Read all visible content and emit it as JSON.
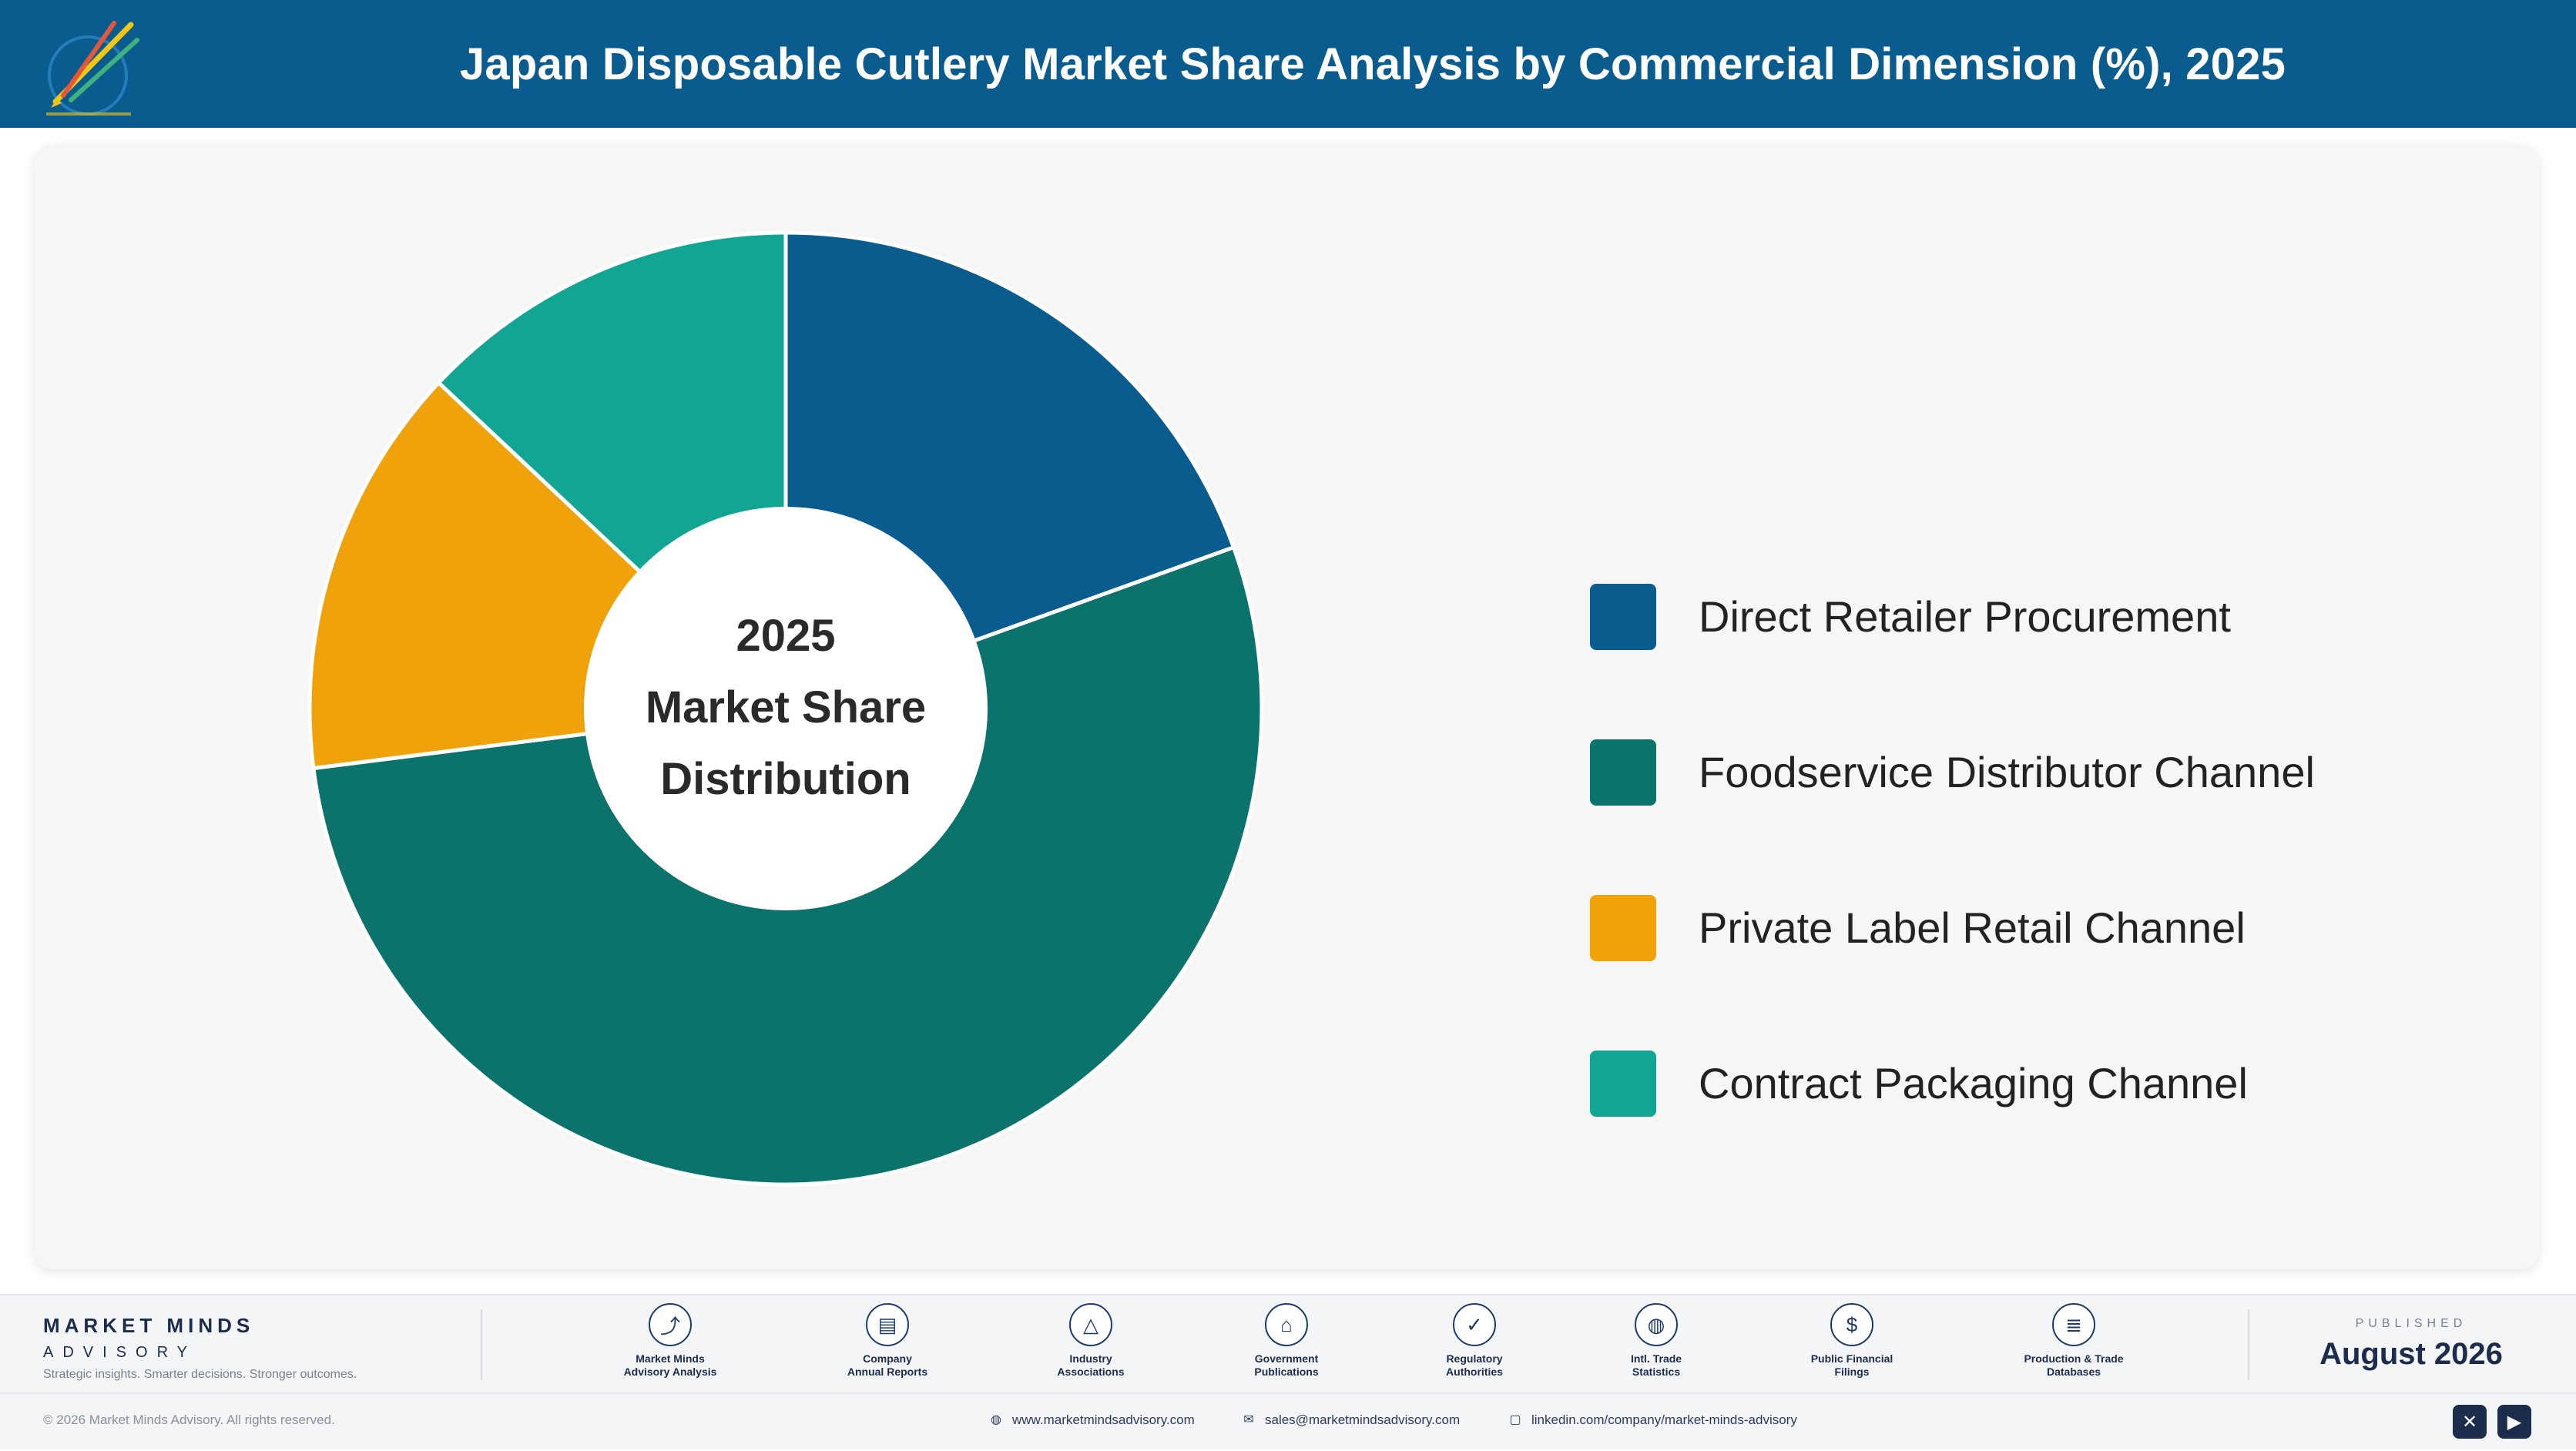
{
  "header": {
    "title": "Japan Disposable Cutlery Market Share Analysis by Commercial Dimension (%), 2025",
    "logo_icon": "market-minds-logo"
  },
  "chart_data": {
    "type": "pie",
    "title": "Japan Disposable Cutlery Market Share Analysis by Commercial Dimension (%), 2025",
    "center_label": [
      "2025",
      "Market Share",
      "Distribution"
    ],
    "categories": [
      "Direct Retailer Procurement",
      "Foodservice Distributor Channel",
      "Private Label Retail Channel",
      "Contract Packaging Channel"
    ],
    "values": [
      19.5,
      53.5,
      14.0,
      13.0
    ],
    "unit": "%",
    "colors": [
      "#0a5c8e",
      "#0c736c",
      "#f0a20a",
      "#12a594"
    ],
    "donut": true,
    "start_angle": "top",
    "direction": "clockwise",
    "legend_position": "right"
  },
  "footer": {
    "brand_name": "MARKET MINDS",
    "brand_sub": "ADVISORY",
    "brand_tag": "Strategic insights. Smarter decisions. Stronger outcomes.",
    "sources": [
      {
        "label": "Market Minds\nAdvisory Analysis",
        "icon": "trend-chart-icon",
        "glyph": "⤴"
      },
      {
        "label": "Company\nAnnual Reports",
        "icon": "document-icon",
        "glyph": "▤"
      },
      {
        "label": "Industry\nAssociations",
        "icon": "network-icon",
        "glyph": "△"
      },
      {
        "label": "Government\nPublications",
        "icon": "government-building-icon",
        "glyph": "⌂"
      },
      {
        "label": "Regulatory\nAuthorities",
        "icon": "shield-check-icon",
        "glyph": "✓"
      },
      {
        "label": "Intl. Trade\nStatistics",
        "icon": "globe-icon",
        "glyph": "◍"
      },
      {
        "label": "Public Financial\nFilings",
        "icon": "currency-icon",
        "glyph": "$"
      },
      {
        "label": "Production & Trade\nDatabases",
        "icon": "database-icon",
        "glyph": "≣"
      }
    ],
    "published_label": "PUBLISHED",
    "published_date": "August 2026",
    "copyright": "© 2026 Market Minds Advisory. All rights reserved.",
    "website": "www.marketmindsadvisory.com",
    "email": "sales@marketmindsadvisory.com",
    "linkedin": "linkedin.com/company/market-minds-advisory",
    "social_x_icon": "x-social-icon",
    "social_youtube_icon": "youtube-icon"
  }
}
